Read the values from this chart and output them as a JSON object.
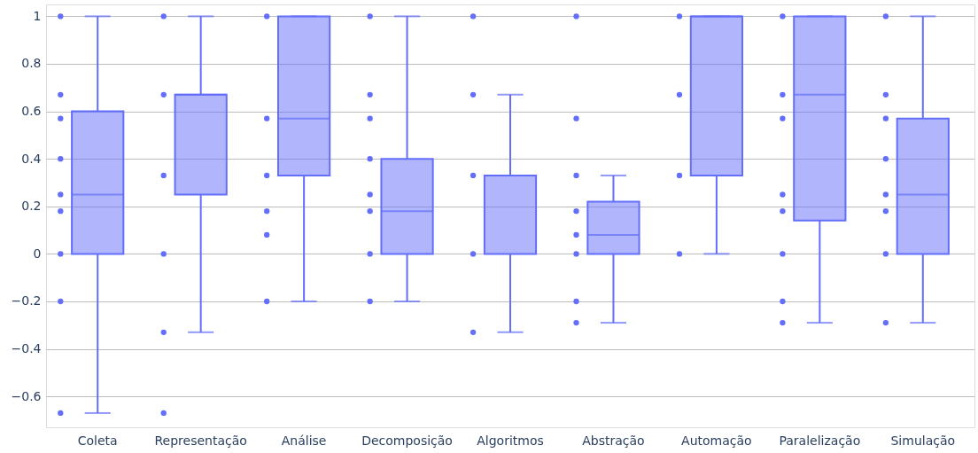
{
  "chart_data": {
    "type": "box",
    "categories": [
      "Coleta",
      "Representação",
      "Análise",
      "Decomposição",
      "Algoritmos",
      "Abstração",
      "Automação",
      "Paralelização",
      "Simulação"
    ],
    "ylim": [
      -0.73,
      1.05
    ],
    "yticks": [
      {
        "value": -0.6,
        "label": "−0.6"
      },
      {
        "value": -0.4,
        "label": "−0.4"
      },
      {
        "value": -0.2,
        "label": "−0.2"
      },
      0,
      0.2,
      0.4,
      0.6,
      0.8,
      1
    ],
    "grid": "y",
    "series": [
      {
        "color": "#636efa",
        "boxes": [
          {
            "low": -0.67,
            "q1": 0,
            "median": 0.25,
            "q3": 0.6,
            "high": 1
          },
          {
            "low": -0.33,
            "q1": 0.25,
            "median": 0.67,
            "q3": 0.67,
            "high": 1
          },
          {
            "low": -0.2,
            "q1": 0.33,
            "median": 0.57,
            "q3": 1,
            "high": 1
          },
          {
            "low": -0.2,
            "q1": 0,
            "median": 0.18,
            "q3": 0.4,
            "high": 1
          },
          {
            "low": -0.33,
            "q1": 0,
            "median": 0.33,
            "q3": 0.33,
            "high": 0.67
          },
          {
            "low": -0.29,
            "q1": 0,
            "median": 0.08,
            "q3": 0.22,
            "high": 0.33
          },
          {
            "low": 0,
            "q1": 0.33,
            "median": 1,
            "q3": 1,
            "high": 1
          },
          {
            "low": -0.29,
            "q1": 0.14,
            "median": 0.67,
            "q3": 1,
            "high": 1
          },
          {
            "low": -0.29,
            "q1": 0,
            "median": 0.25,
            "q3": 0.57,
            "high": 1
          }
        ]
      },
      {
        "type": "scatter",
        "color": "#636efa",
        "marker": "circle",
        "x": [
          "Coleta",
          "Coleta",
          "Coleta",
          "Coleta",
          "Coleta",
          "Coleta",
          "Coleta",
          "Coleta",
          "Coleta",
          "Representação",
          "Representação",
          "Representação",
          "Representação",
          "Representação",
          "Representação",
          "Análise",
          "Análise",
          "Análise",
          "Análise",
          "Análise",
          "Análise",
          "Decomposição",
          "Decomposição",
          "Decomposição",
          "Decomposição",
          "Decomposição",
          "Decomposição",
          "Decomposição",
          "Decomposição",
          "Algoritmos",
          "Algoritmos",
          "Algoritmos",
          "Algoritmos",
          "Algoritmos",
          "Abstração",
          "Abstração",
          "Abstração",
          "Abstração",
          "Abstração",
          "Abstração",
          "Abstração",
          "Abstração",
          "Automação",
          "Automação",
          "Automação",
          "Automação",
          "Paralelização",
          "Paralelização",
          "Paralelização",
          "Paralelização",
          "Paralelização",
          "Paralelização",
          "Paralelização",
          "Paralelização",
          "Simulação",
          "Simulação",
          "Simulação",
          "Simulação",
          "Simulação",
          "Simulação",
          "Simulação",
          "Simulação"
        ],
        "values": [
          1,
          0.67,
          0.57,
          0.4,
          0.25,
          0.18,
          0,
          -0.2,
          -0.67,
          1,
          0.67,
          0.33,
          0,
          -0.33,
          -0.67,
          1,
          0.57,
          0.33,
          0.18,
          0.08,
          -0.2,
          1,
          0.67,
          0.57,
          0.4,
          0.25,
          0.18,
          0,
          -0.2,
          1,
          0.67,
          0.33,
          0,
          -0.33,
          1,
          0.57,
          0.33,
          0.18,
          0.08,
          0,
          -0.2,
          -0.29,
          1,
          0.67,
          0.33,
          0,
          1,
          0.67,
          0.57,
          0.25,
          0.18,
          0,
          -0.2,
          -0.29,
          1,
          0.67,
          0.57,
          0.4,
          0.25,
          0.18,
          0,
          -0.29
        ]
      }
    ]
  }
}
